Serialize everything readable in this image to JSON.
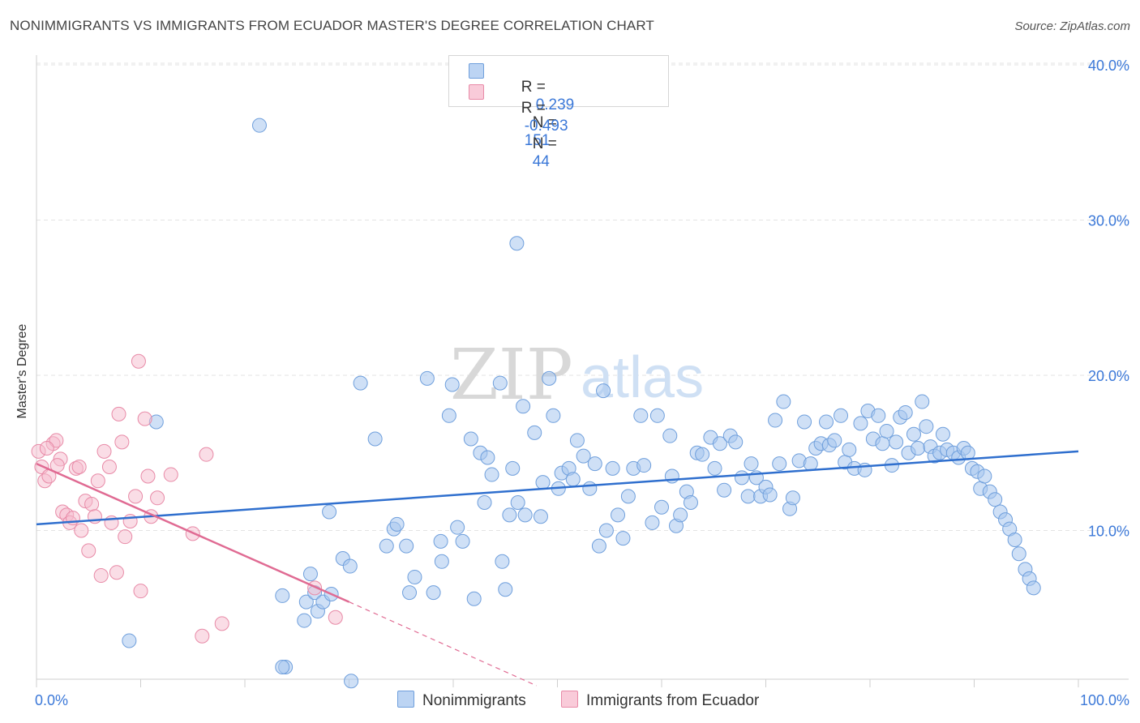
{
  "title": "NONIMMIGRANTS VS IMMIGRANTS FROM ECUADOR MASTER'S DEGREE CORRELATION CHART",
  "source": "Source: ZipAtlas.com",
  "watermark": "ZIPatlas",
  "legend": {
    "rows": [
      {
        "r_label": "R =",
        "r_value": "0.239",
        "n_label": "N =",
        "n_value": "151"
      },
      {
        "r_label": "R =",
        "r_value": "-0.493",
        "n_label": "N =",
        "n_value": "44"
      }
    ]
  },
  "bottom_legend": [
    "Nonimmigrants",
    "Immigrants from Ecuador"
  ],
  "chart_data": {
    "type": "scatter",
    "title": "NONIMMIGRANTS VS IMMIGRANTS FROM ECUADOR MASTER'S DEGREE CORRELATION CHART",
    "xlabel": "",
    "ylabel": "Master's Degree",
    "xlim": [
      0,
      100
    ],
    "ylim": [
      0,
      42
    ],
    "x_tick_labels": [
      "0.0%",
      "100.0%"
    ],
    "y_tick_labels": [
      "10.0%",
      "20.0%",
      "30.0%",
      "40.0%"
    ],
    "y_ticks": [
      10,
      20,
      30,
      40
    ],
    "grid": true,
    "legend_position": "top-center",
    "colors": {
      "blue_fill": "#a8c6ee",
      "blue_stroke": "#6f9fdc",
      "blue_line": "#2f6fce",
      "pink_fill": "#f6bccd",
      "pink_stroke": "#e88aa7",
      "pink_line": "#e06b93",
      "axis_text": "#3b78d8"
    },
    "series": [
      {
        "name": "Nonimmigrants",
        "trend": {
          "x": [
            0,
            100
          ],
          "y": [
            10.4,
            15.1
          ]
        },
        "points": [
          [
            21.4,
            36.1
          ],
          [
            46.1,
            28.5
          ],
          [
            11.5,
            17.0
          ],
          [
            8.9,
            2.9
          ],
          [
            23.6,
            5.8
          ],
          [
            25.7,
            4.2
          ],
          [
            23.9,
            1.2
          ],
          [
            30.2,
            0.3
          ],
          [
            23.6,
            1.2
          ],
          [
            25.9,
            5.4
          ],
          [
            26.3,
            7.2
          ],
          [
            26.7,
            6.0
          ],
          [
            27.0,
            4.8
          ],
          [
            27.5,
            5.4
          ],
          [
            28.1,
            11.2
          ],
          [
            28.3,
            5.9
          ],
          [
            29.4,
            8.2
          ],
          [
            30.1,
            7.7
          ],
          [
            31.1,
            19.5
          ],
          [
            32.5,
            15.9
          ],
          [
            33.6,
            9.0
          ],
          [
            34.3,
            10.1
          ],
          [
            34.6,
            10.4
          ],
          [
            35.5,
            9.0
          ],
          [
            35.8,
            6.0
          ],
          [
            36.3,
            7.0
          ],
          [
            37.5,
            19.8
          ],
          [
            38.1,
            6.0
          ],
          [
            38.8,
            9.3
          ],
          [
            38.9,
            8.0
          ],
          [
            39.6,
            17.4
          ],
          [
            39.9,
            19.4
          ],
          [
            40.4,
            10.2
          ],
          [
            40.9,
            9.3
          ],
          [
            41.7,
            15.9
          ],
          [
            42.0,
            5.6
          ],
          [
            42.6,
            15.0
          ],
          [
            43.0,
            11.8
          ],
          [
            43.3,
            14.7
          ],
          [
            43.7,
            13.6
          ],
          [
            44.5,
            19.5
          ],
          [
            44.7,
            8.0
          ],
          [
            45.0,
            6.2
          ],
          [
            45.4,
            11.0
          ],
          [
            45.7,
            14.0
          ],
          [
            46.2,
            11.8
          ],
          [
            46.7,
            18.0
          ],
          [
            46.9,
            11.0
          ],
          [
            47.8,
            16.3
          ],
          [
            48.4,
            10.9
          ],
          [
            48.6,
            13.1
          ],
          [
            49.2,
            19.8
          ],
          [
            49.6,
            17.4
          ],
          [
            50.1,
            12.7
          ],
          [
            50.4,
            13.7
          ],
          [
            51.1,
            14.0
          ],
          [
            51.5,
            13.3
          ],
          [
            51.9,
            15.8
          ],
          [
            52.5,
            14.8
          ],
          [
            53.1,
            12.7
          ],
          [
            53.6,
            14.3
          ],
          [
            54.0,
            9.0
          ],
          [
            54.4,
            19.0
          ],
          [
            54.7,
            10.0
          ],
          [
            55.3,
            14.0
          ],
          [
            55.8,
            11.0
          ],
          [
            56.3,
            9.5
          ],
          [
            56.8,
            12.2
          ],
          [
            57.3,
            14.0
          ],
          [
            58.0,
            17.4
          ],
          [
            58.3,
            14.2
          ],
          [
            59.1,
            10.5
          ],
          [
            59.6,
            17.4
          ],
          [
            60.0,
            11.5
          ],
          [
            60.8,
            16.1
          ],
          [
            61.0,
            13.5
          ],
          [
            61.4,
            10.3
          ],
          [
            61.8,
            11.0
          ],
          [
            62.4,
            12.5
          ],
          [
            62.8,
            11.8
          ],
          [
            63.4,
            15.0
          ],
          [
            63.9,
            14.9
          ],
          [
            64.7,
            16.0
          ],
          [
            65.1,
            14.0
          ],
          [
            65.6,
            15.6
          ],
          [
            66.0,
            12.6
          ],
          [
            66.6,
            16.1
          ],
          [
            67.1,
            15.7
          ],
          [
            67.7,
            13.4
          ],
          [
            68.3,
            12.2
          ],
          [
            68.6,
            14.3
          ],
          [
            69.1,
            13.4
          ],
          [
            69.5,
            12.2
          ],
          [
            70.0,
            12.8
          ],
          [
            70.4,
            12.3
          ],
          [
            70.9,
            17.1
          ],
          [
            71.3,
            14.3
          ],
          [
            71.7,
            18.3
          ],
          [
            72.3,
            11.4
          ],
          [
            72.6,
            12.1
          ],
          [
            73.2,
            14.5
          ],
          [
            73.7,
            17.0
          ],
          [
            74.3,
            14.3
          ],
          [
            74.8,
            15.3
          ],
          [
            75.3,
            15.6
          ],
          [
            75.8,
            17.0
          ],
          [
            76.1,
            15.5
          ],
          [
            76.6,
            15.8
          ],
          [
            77.2,
            17.4
          ],
          [
            77.6,
            14.4
          ],
          [
            78.0,
            15.2
          ],
          [
            78.5,
            14.0
          ],
          [
            79.1,
            16.9
          ],
          [
            79.5,
            13.9
          ],
          [
            79.8,
            17.7
          ],
          [
            80.3,
            15.9
          ],
          [
            80.8,
            17.4
          ],
          [
            81.2,
            15.6
          ],
          [
            81.6,
            16.4
          ],
          [
            82.1,
            14.2
          ],
          [
            82.5,
            15.7
          ],
          [
            82.9,
            17.3
          ],
          [
            83.4,
            17.6
          ],
          [
            83.7,
            15.0
          ],
          [
            84.2,
            16.2
          ],
          [
            84.6,
            15.3
          ],
          [
            85.0,
            18.3
          ],
          [
            85.4,
            16.7
          ],
          [
            85.8,
            15.4
          ],
          [
            86.2,
            14.8
          ],
          [
            86.7,
            15.0
          ],
          [
            87.0,
            16.2
          ],
          [
            87.4,
            15.2
          ],
          [
            88.0,
            15.0
          ],
          [
            88.5,
            14.7
          ],
          [
            89.0,
            15.3
          ],
          [
            89.4,
            15.0
          ],
          [
            89.8,
            14.0
          ],
          [
            90.3,
            13.8
          ],
          [
            90.6,
            12.7
          ],
          [
            91.0,
            13.5
          ],
          [
            91.5,
            12.5
          ],
          [
            92.0,
            12.0
          ],
          [
            92.5,
            11.2
          ],
          [
            93.0,
            10.7
          ],
          [
            93.4,
            10.1
          ],
          [
            93.9,
            9.4
          ],
          [
            94.3,
            8.5
          ],
          [
            94.9,
            7.5
          ],
          [
            95.3,
            6.9
          ],
          [
            95.7,
            6.3
          ]
        ]
      },
      {
        "name": "Immigrants from Ecuador",
        "trend": {
          "x": [
            0,
            30
          ],
          "y": [
            14.3,
            5.4
          ]
        },
        "trend_dashed": {
          "x": [
            30,
            48
          ],
          "y": [
            5.4,
            0.0
          ]
        },
        "points": [
          [
            0.2,
            15.1
          ],
          [
            0.5,
            14.1
          ],
          [
            0.8,
            13.2
          ],
          [
            1.2,
            13.5
          ],
          [
            1.6,
            15.6
          ],
          [
            1.9,
            15.8
          ],
          [
            2.3,
            14.6
          ],
          [
            2.5,
            11.2
          ],
          [
            2.9,
            11.0
          ],
          [
            3.2,
            10.5
          ],
          [
            3.5,
            10.8
          ],
          [
            3.8,
            14.0
          ],
          [
            4.1,
            14.1
          ],
          [
            4.3,
            10.0
          ],
          [
            4.7,
            11.9
          ],
          [
            5.0,
            8.7
          ],
          [
            5.3,
            11.7
          ],
          [
            5.6,
            10.9
          ],
          [
            5.9,
            13.2
          ],
          [
            6.2,
            7.1
          ],
          [
            6.5,
            15.1
          ],
          [
            7.0,
            14.1
          ],
          [
            7.2,
            10.5
          ],
          [
            7.7,
            7.3
          ],
          [
            7.9,
            17.5
          ],
          [
            8.2,
            15.7
          ],
          [
            8.5,
            9.6
          ],
          [
            9.0,
            10.6
          ],
          [
            9.5,
            12.2
          ],
          [
            9.8,
            20.9
          ],
          [
            10.0,
            6.1
          ],
          [
            10.4,
            17.2
          ],
          [
            10.7,
            13.5
          ],
          [
            11.0,
            10.9
          ],
          [
            11.6,
            12.1
          ],
          [
            12.9,
            13.6
          ],
          [
            15.0,
            9.8
          ],
          [
            15.9,
            3.2
          ],
          [
            16.3,
            14.9
          ],
          [
            17.8,
            4.0
          ],
          [
            26.7,
            6.3
          ],
          [
            28.7,
            4.4
          ],
          [
            1.0,
            15.3
          ],
          [
            2.0,
            14.2
          ]
        ]
      }
    ]
  }
}
